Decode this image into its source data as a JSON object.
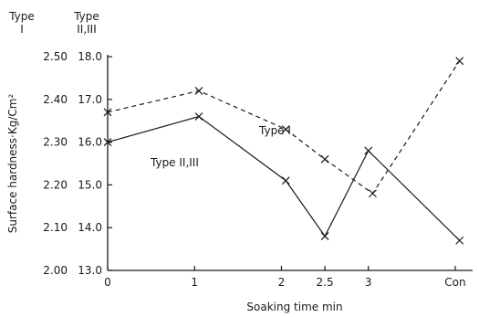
{
  "chart_data": {
    "type": "line",
    "title": "",
    "xlabel": "Soaking time min",
    "ylabel": "Surface hardness·Kg/Cm²",
    "y_axis_headers": {
      "left": "Type\nI",
      "right": "Type\nII,III"
    },
    "x": [
      {
        "label": "0",
        "value": 0
      },
      {
        "label": "1",
        "value": 1
      },
      {
        "label": "2",
        "value": 2
      },
      {
        "label": "2.5",
        "value": 2.5
      },
      {
        "label": "3",
        "value": 3
      },
      {
        "label": "Con",
        "value": 4
      }
    ],
    "xlim": [
      0,
      4.2
    ],
    "y_left_ticks": [
      "2.00",
      "2.10",
      "2.20",
      "2.30",
      "2.40",
      "2.50"
    ],
    "y_right_ticks": [
      "13.0",
      "14.0",
      "15.0",
      "16.0",
      "17.0",
      "18.0"
    ],
    "ylim": [
      2.0,
      2.5
    ],
    "grid": false,
    "series": [
      {
        "name": "Type I",
        "line_style": "dashed",
        "points": [
          {
            "x": 0,
            "y": 2.37
          },
          {
            "x": 1.05,
            "y": 2.42
          },
          {
            "x": 2.05,
            "y": 2.33
          },
          {
            "x": 2.5,
            "y": 2.26
          },
          {
            "x": 3.05,
            "y": 2.18
          },
          {
            "x": 4.05,
            "y": 2.49
          }
        ]
      },
      {
        "name": "Type II,III",
        "line_style": "solid",
        "points": [
          {
            "x": 0,
            "y": 2.3
          },
          {
            "x": 1.05,
            "y": 2.36
          },
          {
            "x": 2.05,
            "y": 2.21
          },
          {
            "x": 2.5,
            "y": 2.08
          },
          {
            "x": 3.0,
            "y": 2.28
          },
          {
            "x": 4.05,
            "y": 2.07
          }
        ]
      }
    ],
    "annotations": [
      {
        "text": "Type I",
        "series": "Type I"
      },
      {
        "text": "Type II,III",
        "series": "Type II,III"
      }
    ]
  }
}
